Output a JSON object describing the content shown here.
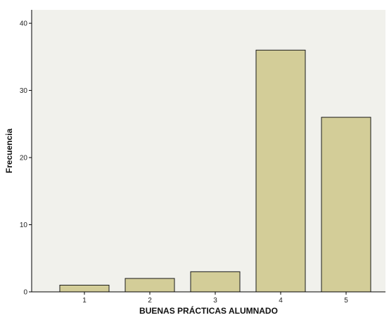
{
  "chart_data": {
    "type": "bar",
    "title": "",
    "xlabel": "BUENAS PRÁCTICAS ALUMNADO",
    "ylabel": "Frecuencia",
    "categories": [
      "1",
      "2",
      "3",
      "4",
      "5"
    ],
    "values": [
      1,
      2,
      3,
      36,
      26
    ],
    "ylim": [
      0,
      42
    ],
    "yticks": [
      0,
      10,
      20,
      30,
      40
    ],
    "grid": false,
    "legend": "none",
    "colors": {
      "plot_background": "#f1f1ec",
      "bar_fill": "#d3cd98",
      "bar_stroke": "#1a1a1a",
      "axis": "#000000"
    }
  }
}
